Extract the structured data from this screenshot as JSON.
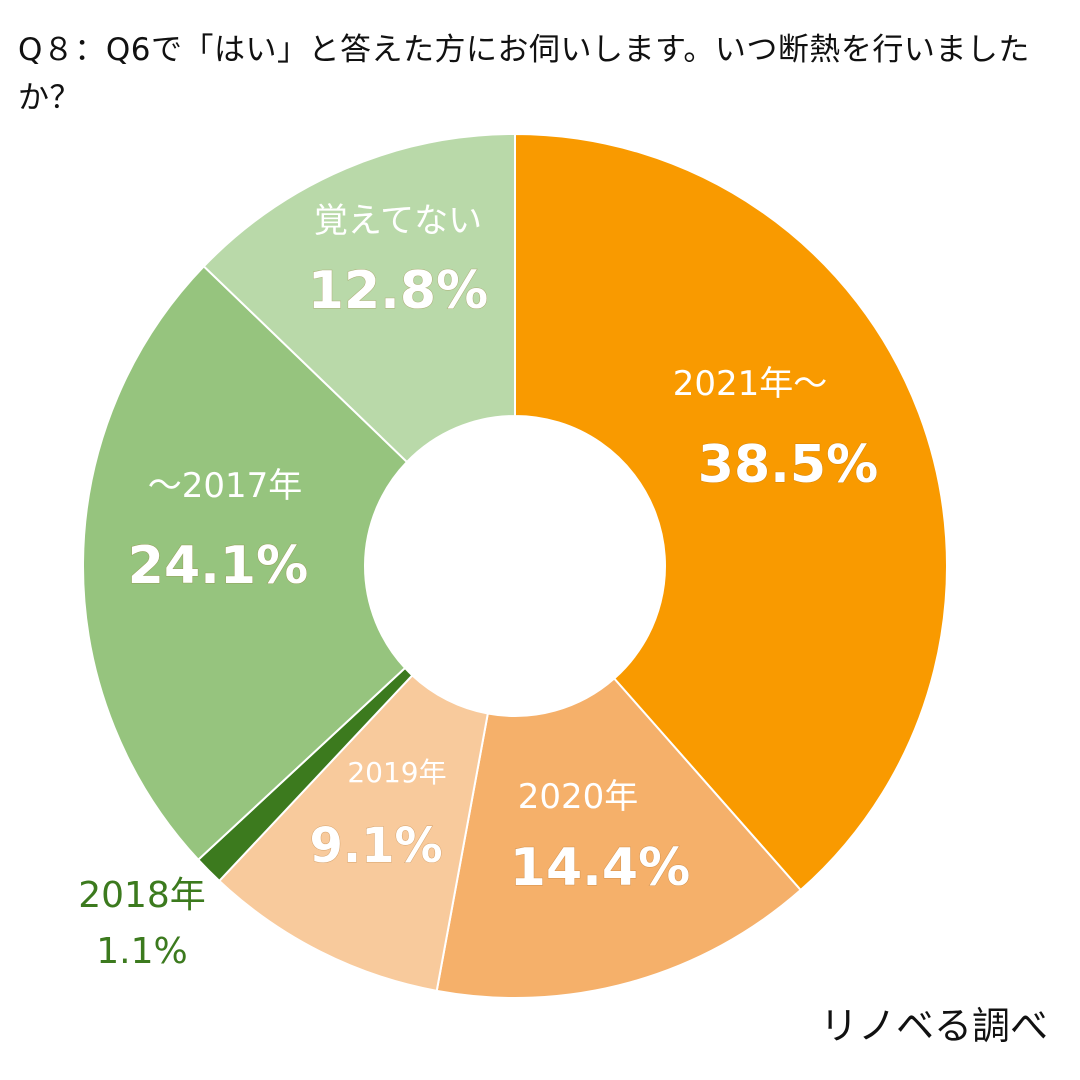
{
  "title": "Q８：Q6で「はい」と答えた方にお伺いします。いつ断熱を行いましたか？",
  "source": "リノベる調べ",
  "colors": {
    "2021": "#F99A00",
    "2020": "#F5B06A",
    "2019": "#F8CA9C",
    "2018": "#3C7A1E",
    "2017": "#96C47E",
    "unknown": "#B9D9A9",
    "label_light": "#FFFFFF",
    "label_dark": "#3C7A1E"
  },
  "chart_data": {
    "type": "pie",
    "donut": true,
    "title": "Q８：Q6で「はい」と答えた方にお伺いします。いつ断熱を行いましたか？",
    "categories": [
      "2021年～",
      "2020年",
      "2019年",
      "2018年",
      "～2017年",
      "覚えてない"
    ],
    "values": [
      38.5,
      14.4,
      9.1,
      1.1,
      24.1,
      12.8
    ],
    "value_labels": [
      "38.5%",
      "14.4%",
      "9.1%",
      "1.1%",
      "24.1%",
      "12.8%"
    ],
    "start": "12 o'clock, clockwise",
    "label_placement": "inside (2018年 outside, bottom-left)"
  }
}
